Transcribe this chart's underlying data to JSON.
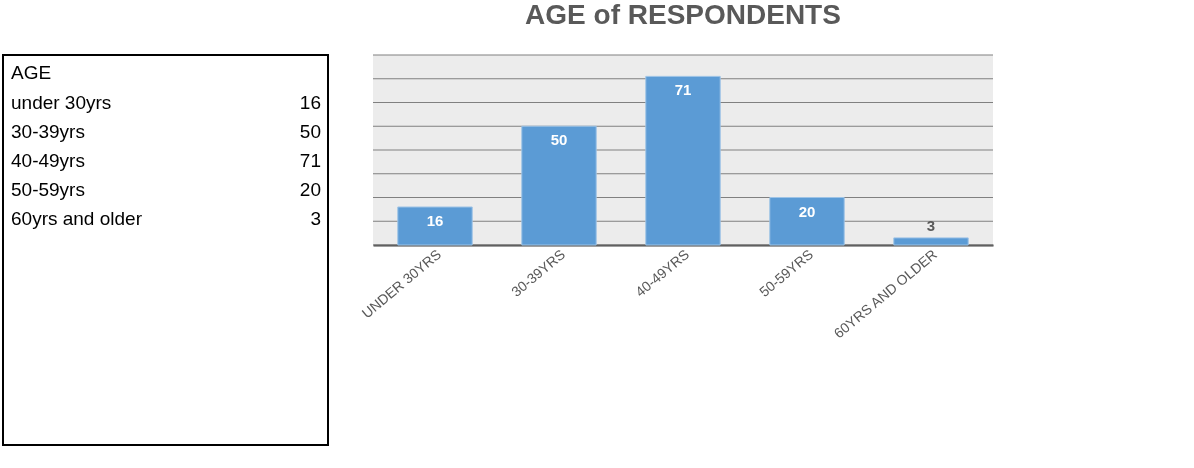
{
  "chart_data": [
    {
      "type": "other",
      "title": "AGE",
      "categories": [
        "under 30yrs",
        "30-39yrs",
        "40-49yrs",
        "50-59yrs",
        "60yrs and older"
      ],
      "values": [
        16,
        50,
        71,
        20,
        3
      ],
      "data_labels": true
    },
    {
      "type": "bar",
      "title": "AGE of RESPONDENTS",
      "categories": [
        "UNDER 30YRS",
        "30-39YRS",
        "40-49YRS",
        "50-59YRS",
        "60YRS AND OLDER"
      ],
      "values": [
        16,
        50,
        71,
        20,
        3
      ],
      "color": "#5b9bd5",
      "ylim": [
        0,
        80
      ],
      "yticks": [
        {
          "value": 0,
          "label": null
        },
        {
          "value": 10,
          "label": null
        },
        {
          "value": 20,
          "label": null
        },
        {
          "value": 30,
          "label": null
        },
        {
          "value": 40,
          "label": null
        },
        {
          "value": 50,
          "label": null
        },
        {
          "value": 60,
          "label": null
        },
        {
          "value": 70,
          "label": null
        },
        {
          "value": 80,
          "label": null
        }
      ],
      "grid": "y",
      "tick_labels": "x",
      "data_labels": true
    }
  ]
}
